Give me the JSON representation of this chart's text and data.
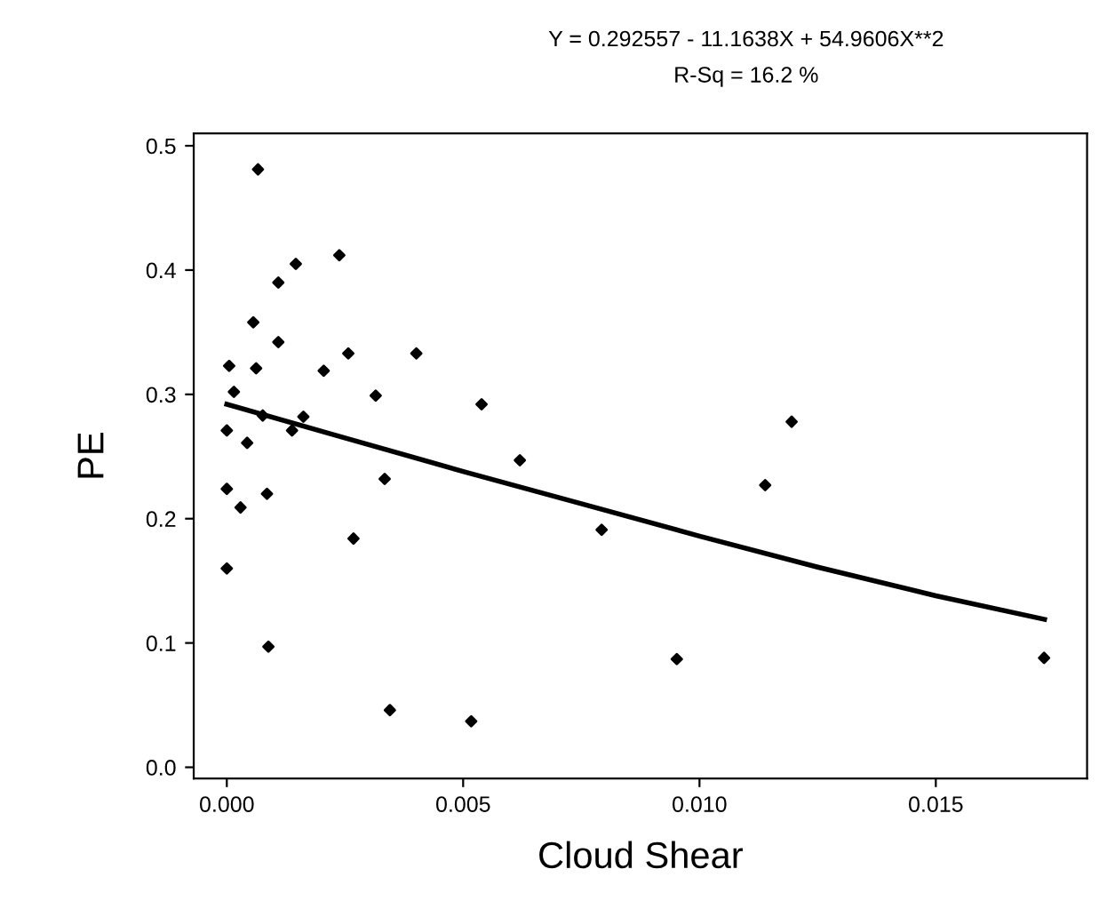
{
  "chart_data": {
    "type": "scatter",
    "title": "Y = 0.292557 - 11.1638X + 54.9606X**2",
    "subtitle": "R-Sq = 16.2 %",
    "xlabel": "Cloud Shear",
    "ylabel": "PE",
    "series": [
      {
        "color": "#000000",
        "marker": "diamond",
        "x": [
          0.00066,
          0.00238,
          0.00146,
          0.00109,
          0.00056,
          0.00109,
          5e-05,
          0.00062,
          0.00257,
          0.00401,
          0.00205,
          0.00015,
          0.00315,
          0.00539,
          0.0,
          0.00043,
          0.00076,
          0.00138,
          0.00162,
          0.0062,
          0.0,
          0.00085,
          0.00029,
          0.00334,
          0.00268,
          0.00793,
          0.0,
          0.00088,
          0.00345,
          0.00517,
          0.00952,
          0.01139,
          0.01195,
          0.01729
        ],
        "values": [
          0.481,
          0.412,
          0.405,
          0.39,
          0.358,
          0.342,
          0.323,
          0.321,
          0.333,
          0.333,
          0.319,
          0.302,
          0.299,
          0.292,
          0.271,
          0.261,
          0.283,
          0.271,
          0.282,
          0.247,
          0.224,
          0.22,
          0.209,
          0.232,
          0.184,
          0.191,
          0.16,
          0.097,
          0.046,
          0.037,
          0.087,
          0.227,
          0.278,
          0.088
        ]
      },
      {
        "type": "line",
        "color": "#000000",
        "line_style": "solid",
        "x": [
          0.0,
          0.0025,
          0.005,
          0.0075,
          0.01,
          0.0125,
          0.015,
          0.0173
        ],
        "values": [
          0.292,
          0.265,
          0.238,
          0.212,
          0.186,
          0.161,
          0.138,
          0.119
        ]
      }
    ],
    "xlim": [
      -0.0007,
      0.0182
    ],
    "ylim": [
      -0.009,
      0.51
    ],
    "xticks": [
      {
        "value": 0,
        "label": "0.000"
      },
      0.005,
      {
        "value": 0.01,
        "label": "0.010"
      },
      0.015
    ],
    "yticks": [
      {
        "value": 0,
        "label": "0.0"
      },
      0.1,
      0.2,
      0.3,
      0.4,
      0.5
    ],
    "grid": false,
    "legend": false
  }
}
